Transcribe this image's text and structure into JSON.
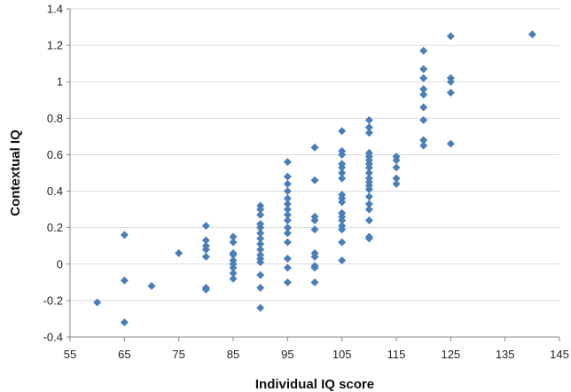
{
  "chart_data": {
    "type": "scatter",
    "title": "",
    "xlabel": "Individual IQ score",
    "ylabel": "Contextual IQ",
    "xlim": [
      55,
      145
    ],
    "ylim": [
      -0.4,
      1.4
    ],
    "x_ticks": [
      55,
      65,
      75,
      85,
      95,
      105,
      115,
      125,
      135,
      145
    ],
    "y_ticks": [
      -0.4,
      -0.2,
      0,
      0.2,
      0.4,
      0.6,
      0.8,
      1,
      1.2,
      1.4
    ],
    "x_tick_labels": [
      "55",
      "65",
      "75",
      "85",
      "95",
      "105",
      "115",
      "125",
      "135",
      "145"
    ],
    "y_tick_labels": [
      "-0.4",
      "-0.2",
      "0",
      "0.2",
      "0.4",
      "0.6",
      "0.8",
      "1",
      "1.2",
      "1.4"
    ],
    "grid": "horizontal",
    "legend": "none",
    "marker": "diamond",
    "color": "#4a7ebb",
    "series": [
      {
        "points": [
          [
            60,
            -0.21
          ],
          [
            65,
            0.16
          ],
          [
            65,
            -0.09
          ],
          [
            65,
            -0.32
          ],
          [
            70,
            -0.12
          ],
          [
            75,
            0.06
          ],
          [
            80,
            0.21
          ],
          [
            80,
            0.13
          ],
          [
            80,
            0.1
          ],
          [
            80,
            0.08
          ],
          [
            80,
            0.04
          ],
          [
            80,
            -0.13
          ],
          [
            80,
            -0.14
          ],
          [
            85,
            0.15
          ],
          [
            85,
            0.12
          ],
          [
            85,
            0.06
          ],
          [
            85,
            0.05
          ],
          [
            85,
            0.02
          ],
          [
            85,
            0.0
          ],
          [
            85,
            -0.02
          ],
          [
            85,
            -0.05
          ],
          [
            85,
            -0.08
          ],
          [
            90,
            0.32
          ],
          [
            90,
            0.3
          ],
          [
            90,
            0.27
          ],
          [
            90,
            0.22
          ],
          [
            90,
            0.2
          ],
          [
            90,
            0.17
          ],
          [
            90,
            0.14
          ],
          [
            90,
            0.11
          ],
          [
            90,
            0.08
          ],
          [
            90,
            0.05
          ],
          [
            90,
            0.03
          ],
          [
            90,
            0.01
          ],
          [
            90,
            -0.06
          ],
          [
            90,
            -0.13
          ],
          [
            90,
            -0.24
          ],
          [
            95,
            0.56
          ],
          [
            95,
            0.48
          ],
          [
            95,
            0.44
          ],
          [
            95,
            0.4
          ],
          [
            95,
            0.36
          ],
          [
            95,
            0.33
          ],
          [
            95,
            0.3
          ],
          [
            95,
            0.27
          ],
          [
            95,
            0.24
          ],
          [
            95,
            0.2
          ],
          [
            95,
            0.17
          ],
          [
            95,
            0.12
          ],
          [
            95,
            0.03
          ],
          [
            95,
            -0.02
          ],
          [
            95,
            -0.1
          ],
          [
            100,
            0.64
          ],
          [
            100,
            0.46
          ],
          [
            100,
            0.26
          ],
          [
            100,
            0.24
          ],
          [
            100,
            0.19
          ],
          [
            100,
            0.06
          ],
          [
            100,
            0.04
          ],
          [
            100,
            -0.01
          ],
          [
            100,
            -0.02
          ],
          [
            100,
            -0.1
          ],
          [
            105,
            0.73
          ],
          [
            105,
            0.62
          ],
          [
            105,
            0.6
          ],
          [
            105,
            0.55
          ],
          [
            105,
            0.53
          ],
          [
            105,
            0.5
          ],
          [
            105,
            0.47
          ],
          [
            105,
            0.38
          ],
          [
            105,
            0.36
          ],
          [
            105,
            0.34
          ],
          [
            105,
            0.28
          ],
          [
            105,
            0.26
          ],
          [
            105,
            0.24
          ],
          [
            105,
            0.21
          ],
          [
            105,
            0.19
          ],
          [
            105,
            0.12
          ],
          [
            105,
            0.02
          ],
          [
            110,
            0.79
          ],
          [
            110,
            0.75
          ],
          [
            110,
            0.72
          ],
          [
            110,
            0.61
          ],
          [
            110,
            0.59
          ],
          [
            110,
            0.57
          ],
          [
            110,
            0.55
          ],
          [
            110,
            0.53
          ],
          [
            110,
            0.5
          ],
          [
            110,
            0.47
          ],
          [
            110,
            0.45
          ],
          [
            110,
            0.43
          ],
          [
            110,
            0.41
          ],
          [
            110,
            0.37
          ],
          [
            110,
            0.33
          ],
          [
            110,
            0.3
          ],
          [
            110,
            0.24
          ],
          [
            110,
            0.15
          ],
          [
            110,
            0.14
          ],
          [
            115,
            0.59
          ],
          [
            115,
            0.57
          ],
          [
            115,
            0.53
          ],
          [
            115,
            0.47
          ],
          [
            115,
            0.44
          ],
          [
            120,
            1.17
          ],
          [
            120,
            1.07
          ],
          [
            120,
            1.02
          ],
          [
            120,
            0.96
          ],
          [
            120,
            0.93
          ],
          [
            120,
            0.86
          ],
          [
            120,
            0.79
          ],
          [
            120,
            0.68
          ],
          [
            120,
            0.65
          ],
          [
            125,
            1.25
          ],
          [
            125,
            1.02
          ],
          [
            125,
            1.0
          ],
          [
            125,
            0.94
          ],
          [
            125,
            0.66
          ],
          [
            140,
            1.26
          ]
        ]
      }
    ]
  }
}
